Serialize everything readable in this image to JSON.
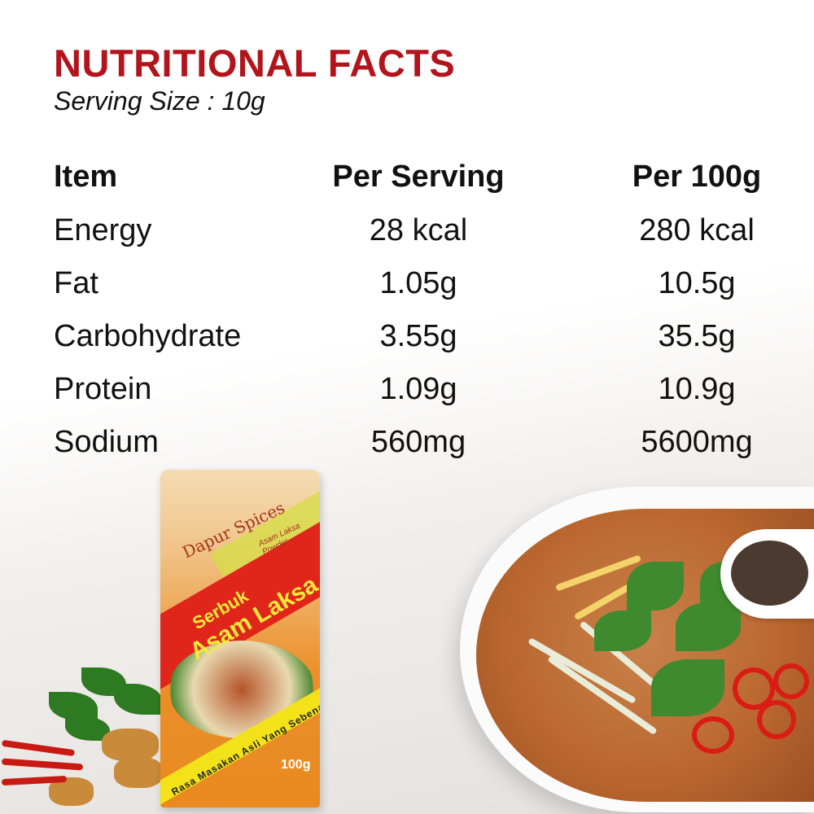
{
  "header": {
    "title": "NUTRITIONAL FACTS",
    "serving_size": "Serving Size : 10g"
  },
  "table": {
    "columns": [
      "Item",
      "Per Serving",
      "Per 100g"
    ],
    "rows": [
      {
        "item": "Energy",
        "per_serving": "28 kcal",
        "per_100g": "280 kcal"
      },
      {
        "item": "Fat",
        "per_serving": "1.05g",
        "per_100g": "10.5g"
      },
      {
        "item": "Carbohydrate",
        "per_serving": "3.55g",
        "per_100g": "35.5g"
      },
      {
        "item": "Protein",
        "per_serving": "1.09g",
        "per_100g": "10.9g"
      },
      {
        "item": "Sodium",
        "per_serving": "560mg",
        "per_100g": "5600mg"
      }
    ]
  },
  "package": {
    "brand": "Dapur Spices",
    "subtitle": "Asam Laksa Powder",
    "name_line1": "Serbuk",
    "name_line2": "Asam Laksa",
    "tagline": "Rasa Masakan Asli Yang Sebenar",
    "weight": "100g"
  }
}
